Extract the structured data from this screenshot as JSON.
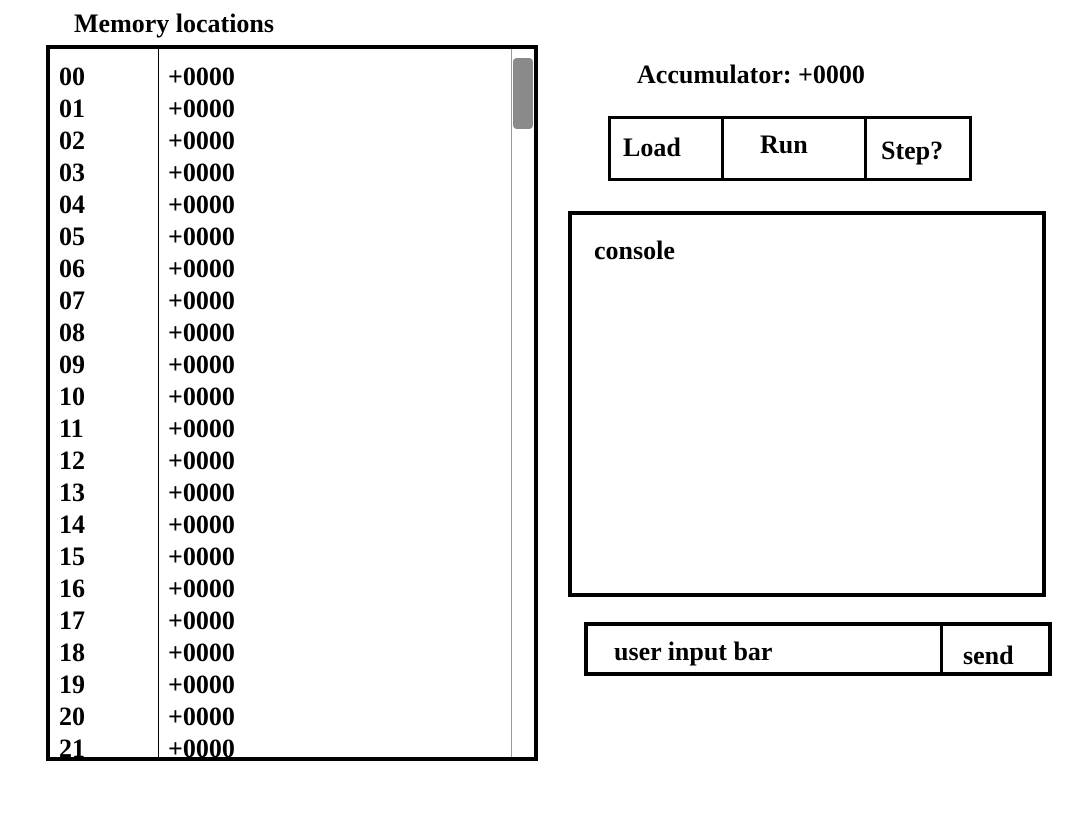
{
  "memory": {
    "title": "Memory locations",
    "rows": [
      {
        "addr": "00",
        "value": "+0000"
      },
      {
        "addr": "01",
        "value": "+0000"
      },
      {
        "addr": "02",
        "value": "+0000"
      },
      {
        "addr": "03",
        "value": "+0000"
      },
      {
        "addr": "04",
        "value": "+0000"
      },
      {
        "addr": "05",
        "value": "+0000"
      },
      {
        "addr": "06",
        "value": "+0000"
      },
      {
        "addr": "07",
        "value": "+0000"
      },
      {
        "addr": "08",
        "value": "+0000"
      },
      {
        "addr": "09",
        "value": "+0000"
      },
      {
        "addr": "10",
        "value": "+0000"
      },
      {
        "addr": "11",
        "value": "+0000"
      },
      {
        "addr": "12",
        "value": "+0000"
      },
      {
        "addr": "13",
        "value": "+0000"
      },
      {
        "addr": "14",
        "value": "+0000"
      },
      {
        "addr": "15",
        "value": "+0000"
      },
      {
        "addr": "16",
        "value": "+0000"
      },
      {
        "addr": "17",
        "value": "+0000"
      },
      {
        "addr": "18",
        "value": "+0000"
      },
      {
        "addr": "19",
        "value": "+0000"
      },
      {
        "addr": "20",
        "value": "+0000"
      },
      {
        "addr": "21",
        "value": "+0000"
      }
    ]
  },
  "accumulator": {
    "label": "Accumulator: +0000"
  },
  "controls": {
    "load": "Load",
    "run": "Run",
    "step": "Step?"
  },
  "console": {
    "label": "console"
  },
  "input": {
    "placeholder": "user input bar",
    "send": "send"
  },
  "colors": {
    "border": "#000000",
    "scrollbar_thumb": "#8a8a8a",
    "background": "#ffffff"
  }
}
